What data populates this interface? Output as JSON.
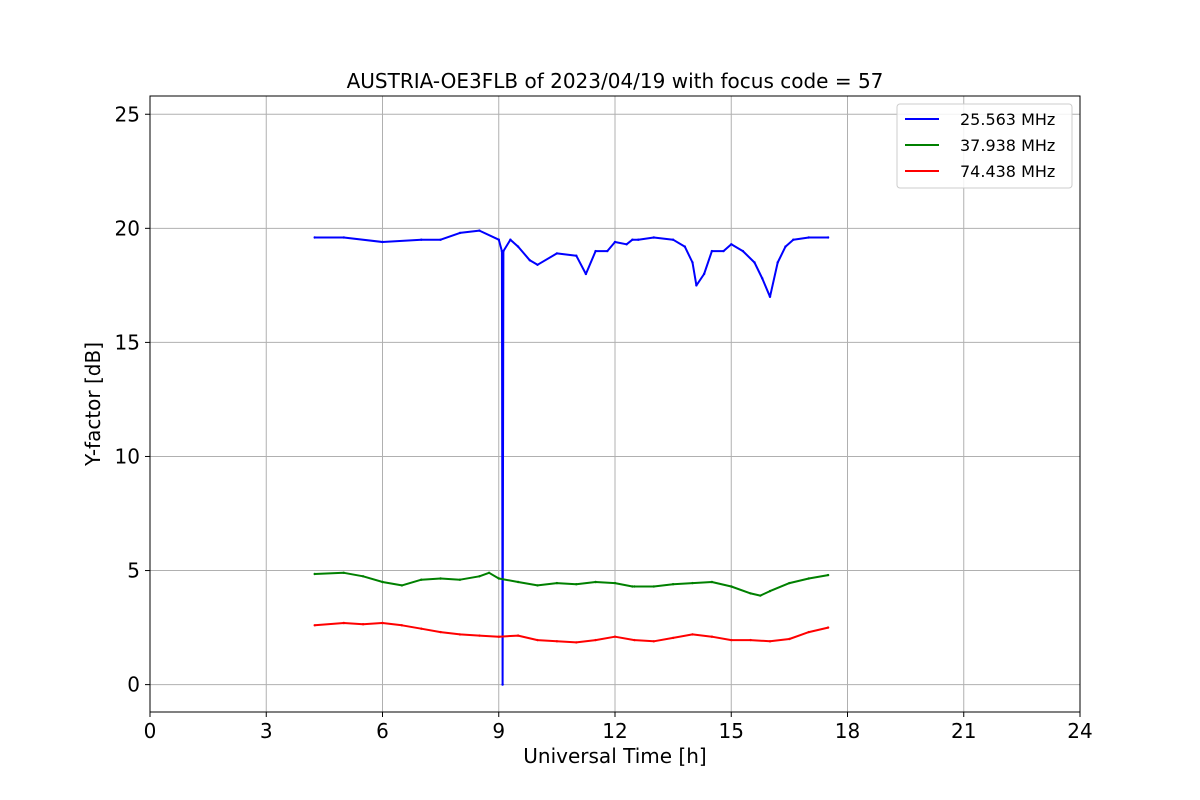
{
  "chart_data": {
    "type": "line",
    "title": "AUSTRIA-OE3FLB of 2023/04/19 with focus code = 57",
    "xlabel": "Universal Time [h]",
    "ylabel": "Y-factor [dB]",
    "xlim": [
      0,
      24
    ],
    "ylim": [
      -1.2,
      25.8
    ],
    "xticks": [
      "0",
      "3",
      "6",
      "9",
      "12",
      "15",
      "18",
      "21",
      "24"
    ],
    "yticks": [
      "0",
      "5",
      "10",
      "15",
      "20",
      "25"
    ],
    "grid": true,
    "legend_position": "top-right",
    "series": [
      {
        "name": "25.563 MHz",
        "color": "#0000ff",
        "x": [
          4.25,
          5.0,
          6.0,
          7.0,
          7.5,
          8.0,
          8.5,
          9.0,
          9.08,
          9.1,
          9.12,
          9.3,
          9.5,
          9.8,
          10.0,
          10.5,
          11.0,
          11.25,
          11.5,
          11.8,
          12.0,
          12.3,
          12.45,
          12.6,
          13.0,
          13.5,
          13.8,
          14.0,
          14.1,
          14.3,
          14.5,
          14.8,
          15.0,
          15.3,
          15.6,
          15.8,
          16.0,
          16.2,
          16.4,
          16.6,
          17.0,
          17.5
        ],
        "y": [
          19.6,
          19.6,
          19.4,
          19.5,
          19.5,
          19.8,
          19.9,
          19.5,
          19.0,
          0.0,
          19.0,
          19.5,
          19.2,
          18.6,
          18.4,
          18.9,
          18.8,
          18.0,
          19.0,
          19.0,
          19.4,
          19.3,
          19.5,
          19.5,
          19.6,
          19.5,
          19.2,
          18.5,
          17.5,
          18.0,
          19.0,
          19.0,
          19.3,
          19.0,
          18.5,
          17.8,
          17.0,
          18.5,
          19.2,
          19.5,
          19.6,
          19.6
        ]
      },
      {
        "name": "37.938 MHz",
        "color": "#008000",
        "x": [
          4.25,
          5.0,
          5.5,
          6.0,
          6.5,
          7.0,
          7.5,
          8.0,
          8.5,
          8.75,
          9.0,
          9.5,
          10.0,
          10.5,
          11.0,
          11.5,
          12.0,
          12.45,
          12.5,
          13.0,
          13.5,
          14.0,
          14.5,
          15.0,
          15.5,
          15.75,
          16.0,
          16.5,
          17.0,
          17.5
        ],
        "y": [
          4.85,
          4.9,
          4.75,
          4.5,
          4.35,
          4.6,
          4.65,
          4.6,
          4.75,
          4.9,
          4.65,
          4.5,
          4.35,
          4.45,
          4.4,
          4.5,
          4.45,
          4.3,
          4.3,
          4.3,
          4.4,
          4.45,
          4.5,
          4.3,
          4.0,
          3.9,
          4.1,
          4.45,
          4.65,
          4.8
        ]
      },
      {
        "name": "74.438 MHz",
        "color": "#ff0000",
        "x": [
          4.25,
          5.0,
          5.5,
          6.0,
          6.5,
          7.0,
          7.5,
          8.0,
          8.5,
          9.0,
          9.5,
          10.0,
          10.5,
          11.0,
          11.5,
          12.0,
          12.5,
          13.0,
          13.5,
          14.0,
          14.5,
          15.0,
          15.5,
          16.0,
          16.5,
          17.0,
          17.5
        ],
        "y": [
          2.6,
          2.7,
          2.65,
          2.7,
          2.6,
          2.45,
          2.3,
          2.2,
          2.15,
          2.1,
          2.15,
          1.95,
          1.9,
          1.85,
          1.95,
          2.1,
          1.95,
          1.9,
          2.05,
          2.2,
          2.1,
          1.95,
          1.95,
          1.9,
          2.0,
          2.3,
          2.5
        ]
      }
    ]
  }
}
